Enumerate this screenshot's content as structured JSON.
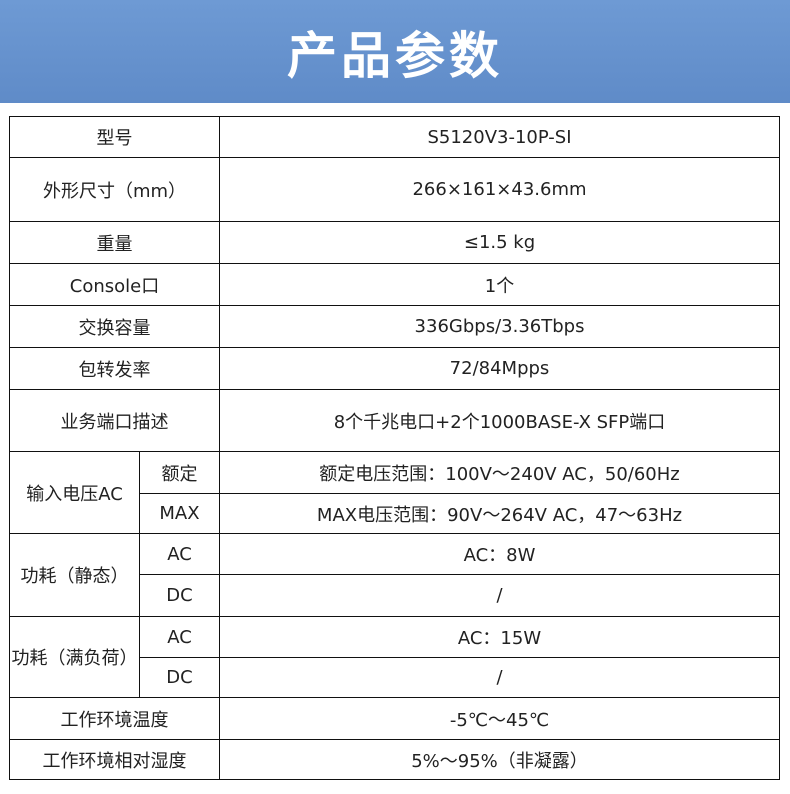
{
  "title": "产品参数",
  "rows": [
    {
      "label": "型号",
      "value": "S5120V3-10P-SI"
    },
    {
      "label": "外形尺寸（mm）",
      "value": "266×161×43.6mm"
    },
    {
      "label": "重量",
      "value": "≤1.5 kg"
    },
    {
      "label": "Console口",
      "value": "1个"
    },
    {
      "label": "交换容量",
      "value": "336Gbps/3.36Tbps"
    },
    {
      "label": "包转发率",
      "value": "72/84Mpps"
    },
    {
      "label": "业务端口描述",
      "value": "8个千兆电口+2个1000BASE-X SFP端口"
    }
  ],
  "groups": [
    {
      "label": "输入电压AC",
      "subs": [
        {
          "label": "额定",
          "value": "额定电压范围：100V～240V AC，50/60Hz"
        },
        {
          "label": "MAX",
          "value": "MAX电压范围：90V～264V AC，47～63Hz"
        }
      ]
    },
    {
      "label": "功耗（静态）",
      "subs": [
        {
          "label": "AC",
          "value": "AC：8W"
        },
        {
          "label": "DC",
          "value": "/"
        }
      ]
    },
    {
      "label": "功耗（满负荷）",
      "subs": [
        {
          "label": "AC",
          "value": "AC：15W"
        },
        {
          "label": "DC",
          "value": "/"
        }
      ]
    }
  ],
  "tail_rows": [
    {
      "label": "工作环境温度",
      "value": "-5℃～45℃"
    },
    {
      "label": "工作环境相对湿度",
      "value": "5%～95%（非凝露）"
    }
  ]
}
